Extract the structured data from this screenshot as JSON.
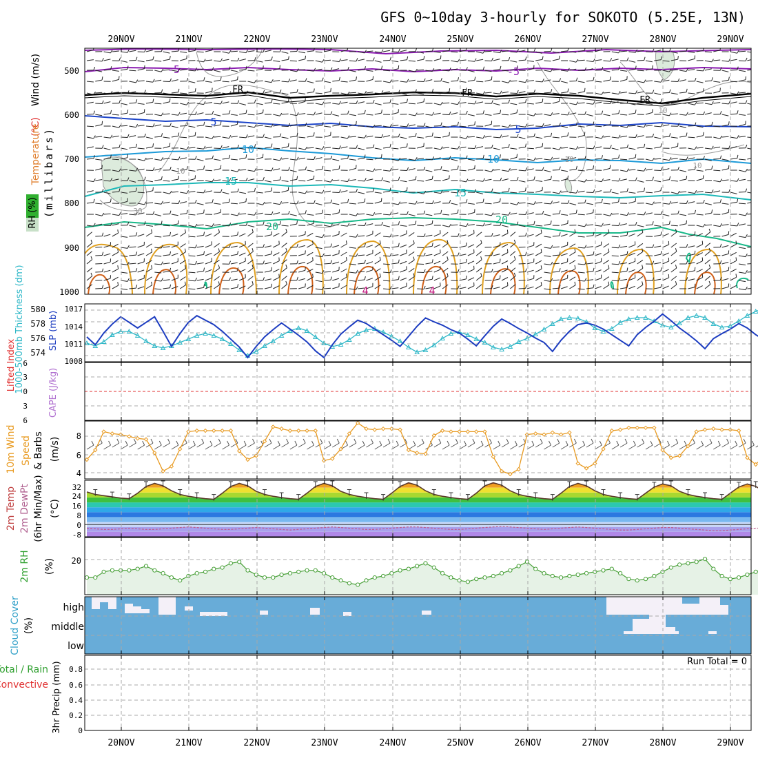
{
  "title": "GFS 0~10day 3-hourly for SOKOTO (5.25E, 13N)",
  "dates": [
    "20NOV",
    "21NOV",
    "22NOV",
    "23NOV",
    "24NOV",
    "25NOV",
    "26NOV",
    "27NOV",
    "28NOV",
    "29NOV"
  ],
  "colors": {
    "frame": "#000000",
    "grid": "#a8a8a8",
    "purple": "#8a1ab0",
    "freezing": "#000000",
    "blue": "#1c44c8",
    "lightblue": "#1c9ad8",
    "cyan": "#1cb8b8",
    "green": "#18b888",
    "orange": "#e0a020",
    "darkorange": "#d06018",
    "magenta": "#c0107a",
    "slp": "#1c3cc0",
    "thickness": "#30b8c8",
    "li_zero": "#e03030",
    "wind10": "#e89a20",
    "rh_fill": "#e6f2e6",
    "rh_line": "#48a038",
    "cloud": "#68acd8",
    "cloud_clear": "#f4f0f8"
  },
  "panels": {
    "upper_air": {
      "ylabel": "(millibars)",
      "legend": {
        "wind": "Wind (m/s)",
        "temp_unit": "(°C)",
        "temperature": "Temperature",
        "rh": "RH (%)"
      },
      "ticks": [
        "500",
        "600",
        "700",
        "800",
        "900",
        "1000"
      ],
      "iso_labels": {
        "m5": "-5",
        "fr": "FR",
        "p5": "5",
        "p10": "10",
        "p15": "15",
        "p20": "20",
        "rh30": "30",
        "rh10": "10",
        "four": "4"
      }
    },
    "slp_thickness": {
      "label_thickness": "1000-500mb Thickness (dm)",
      "label_slp": "SLP (mb)",
      "left_ticks": [
        "580",
        "578",
        "576",
        "574"
      ],
      "right_ticks": [
        "1017",
        "1014",
        "1011",
        "1008"
      ]
    },
    "li_cape": {
      "label_li": "Lifted Index",
      "label_cape": "CAPE (J/kg)",
      "ticks": [
        "6",
        "3",
        "0",
        "3",
        "6"
      ]
    },
    "wind10": {
      "label_a": "10m Wind",
      "label_b": "Speed",
      "label_c": "& Barbs",
      "unit": "(m/s)",
      "ticks": [
        "8",
        "6",
        "4"
      ]
    },
    "temp2m": {
      "label_a": "2m Temp",
      "label_b": "2m DewPt",
      "label_c": "(6hr Min/Max)",
      "unit": "(°C)",
      "ticks": [
        "32",
        "24",
        "16",
        "8",
        "0",
        "-8"
      ]
    },
    "rh2m": {
      "label": "2m RH",
      "unit": "(%)",
      "ticks": [
        "20"
      ]
    },
    "cloud": {
      "label": "Cloud Cover",
      "unit": "(%)",
      "levels": [
        "high",
        "middle",
        "low"
      ]
    },
    "precip": {
      "label_total": "Total / Rain",
      "label_conv": "Convective",
      "ylabel": "3hr Precip (mm)",
      "ticks": [
        "0.8",
        "0.6",
        "0.4",
        "0.2",
        "0"
      ],
      "run_total": "Run Total = 0"
    }
  },
  "chart_data": [
    {
      "type": "line",
      "title": "SLP (mb) / 1000-500mb Thickness (dm)",
      "x_start": "19NOV 15Z",
      "x_step_hours": 3,
      "series": [
        {
          "name": "SLP (mb)",
          "values": [
            1012.2,
            1010.8,
            1012.9,
            1014.5,
            1015.8,
            1014.8,
            1013.8,
            1014.8,
            1015.8,
            1013.2,
            1010.5,
            1012.8,
            1014.8,
            1016.0,
            1015.2,
            1014.4,
            1013.2,
            1011.8,
            1010.4,
            1008.5,
            1010.5,
            1012.2,
            1013.5,
            1014.7,
            1013.6,
            1012.5,
            1011.3,
            1009.7,
            1008.5,
            1010.8,
            1012.7,
            1014.0,
            1015.2,
            1014.6,
            1013.6,
            1012.6,
            1011.6,
            1010.5,
            1012.3,
            1014.1,
            1015.6,
            1014.9,
            1014.3,
            1013.5,
            1012.9,
            1011.8,
            1010.6,
            1012.4,
            1014.1,
            1015.4,
            1014.6,
            1013.7,
            1012.9,
            1012.0,
            1011.2,
            1009.6,
            1011.6,
            1013.2,
            1014.4,
            1014.7,
            1014.3,
            1013.6,
            1012.6,
            1011.6,
            1010.6,
            1012.6,
            1013.9,
            1015.0,
            1016.3,
            1015.1,
            1013.8,
            1012.7,
            1011.5,
            1010.1,
            1011.9,
            1012.8,
            1013.6,
            1014.6,
            1013.8,
            1012.6,
            1011.7,
            1010.9,
            1010.4,
            1011.8,
            1013.4,
            1015.1,
            1016.0,
            1015.0,
            1013.8,
            1012.8,
            1012.1,
            1011.6,
            1012.9,
            1014.3,
            1015.6,
            1015.2,
            1015.1,
            1016.8
          ]
        },
        {
          "name": "1000-500mb Thickness (dm)",
          "values": [
            578.5,
            578.9,
            578.3,
            577.3,
            576.8,
            576.8,
            577.4,
            578.2,
            578.9,
            579.2,
            578.9,
            578.4,
            577.9,
            577.4,
            577.1,
            577.4,
            577.9,
            578.6,
            579.5,
            580.3,
            579.7,
            578.9,
            578.2,
            577.4,
            576.7,
            576.3,
            576.7,
            577.6,
            578.5,
            579.0,
            578.7,
            578.0,
            577.1,
            576.6,
            576.4,
            576.9,
            577.5,
            578.2,
            579.1,
            579.8,
            579.5,
            578.8,
            577.8,
            577.1,
            576.9,
            577.3,
            577.9,
            578.4,
            579.1,
            579.4,
            579.0,
            578.3,
            577.8,
            577.2,
            576.5,
            575.7,
            575.0,
            574.8,
            574.9,
            575.4,
            576.3,
            576.8,
            576.4,
            575.5,
            575.0,
            574.8,
            574.8,
            575.3,
            575.9,
            576.2,
            575.6,
            574.8,
            574.5,
            574.8,
            575.7,
            576.2,
            576.0,
            575.3,
            574.5,
            573.9,
            573.4,
            573.9,
            574.8,
            575.8,
            576.3,
            575.8,
            575.1,
            574.3,
            574.1,
            574.8,
            575.7,
            575.9,
            575.6,
            575.0,
            574.4,
            574.1,
            573.7,
            573.2
          ]
        }
      ],
      "ylim_left": [
        573,
        581
      ],
      "ylim_right": [
        1008,
        1018
      ]
    },
    {
      "type": "line",
      "title": "10m Wind Speed (m/s)",
      "x_start": "19NOV 15Z",
      "x_step_hours": 3,
      "series": [
        {
          "name": "10m Wind Speed",
          "values": [
            7.5,
            6.5,
            4.6,
            4.8,
            4.9,
            5.1,
            5.3,
            5.4,
            6.8,
            8.7,
            8.2,
            6.4,
            4.6,
            4.5,
            4.5,
            4.5,
            4.5,
            4.5,
            6.6,
            7.5,
            7.1,
            5.6,
            4.1,
            4.3,
            4.5,
            4.5,
            4.5,
            4.5,
            7.6,
            7.4,
            6.4,
            4.8,
            3.7,
            4.3,
            4.4,
            4.3,
            4.3,
            4.4,
            6.5,
            6.8,
            6.9,
            5.0,
            4.5,
            4.6,
            4.6,
            4.6,
            4.6,
            4.6,
            7.2,
            8.7,
            9.0,
            8.5,
            4.9,
            4.8,
            4.9,
            4.7,
            4.9,
            4.7,
            7.9,
            8.4,
            7.9,
            6.4,
            4.5,
            4.4,
            4.2,
            4.2,
            4.2,
            4.2,
            6.5,
            7.3,
            7.1,
            6.1,
            4.6,
            4.4,
            4.3,
            4.4,
            4.4,
            4.5,
            7.3,
            8.0,
            7.1,
            6.4,
            4.3,
            4.4,
            4.8,
            4.6,
            4.5,
            4.3,
            6.6,
            8.4,
            7.8,
            6.5,
            5.2,
            5.1,
            5.3,
            5.4,
            5.5,
            5.3
          ]
        }
      ],
      "ylim": [
        3.5,
        9.5
      ]
    },
    {
      "type": "area",
      "title": "2m Temp / 2m DewPt (6hr Min/Max) (°C)",
      "x_start": "19NOV 15Z",
      "x_step_hours": 3,
      "series": [
        {
          "name": "2m Temp",
          "values": [
            26.5,
            24.5,
            23.5,
            22.5,
            21.5,
            21.0,
            25.5,
            31.0,
            33.5,
            31.5,
            27.5,
            24.5,
            23.0,
            22.0,
            21.0,
            20.5,
            25.5,
            31.0,
            33.5,
            31.5,
            27.0,
            24.5,
            23.0,
            22.0,
            21.0,
            20.5,
            25.5,
            31.0,
            33.5,
            31.5,
            27.0,
            24.5,
            23.0,
            22.0,
            21.0,
            20.5,
            25.5,
            31.0,
            34.0,
            32.0,
            27.5,
            24.5,
            23.0,
            22.0,
            21.0,
            20.5,
            25.5,
            31.5,
            34.0,
            32.0,
            27.5,
            24.5,
            23.0,
            22.0,
            21.0,
            20.5,
            25.5,
            31.0,
            33.5,
            31.5,
            27.5,
            24.5,
            23.0,
            22.0,
            21.0,
            20.5,
            25.5,
            30.5,
            33.0,
            31.5,
            27.0,
            24.5,
            23.0,
            22.0,
            21.0,
            20.5,
            25.5,
            30.5,
            33.0,
            31.0,
            27.0,
            24.0,
            22.5,
            21.5,
            20.5,
            20.0,
            25.0,
            30.0,
            31.5,
            30.5,
            26.5,
            23.5,
            22.0,
            21.0,
            20.0,
            19.0,
            18.0,
            17.5
          ]
        },
        {
          "name": "2m DewPt",
          "values": [
            -3,
            -3.5,
            -4,
            -4,
            -3.5,
            -3,
            -3.5,
            -4,
            -4,
            -3.5,
            -3,
            -2.5,
            -2,
            -2.5,
            -3,
            -3.5,
            -4,
            -4,
            -3.5,
            -3,
            -2.5,
            -3,
            -3.5,
            -4,
            -4.5,
            -4,
            -3.5,
            -3,
            -2.5,
            -2,
            -2.5,
            -3,
            -3.5,
            -4,
            -4,
            -3.5,
            -3,
            -2.5,
            -2,
            -2,
            -2.5,
            -3,
            -3.5,
            -4,
            -4,
            -3.5,
            -3,
            -2.5,
            -2,
            -1.5,
            -2,
            -2.5,
            -3,
            -3.5,
            -4,
            -3.5,
            -3,
            -2.5,
            -2,
            -2.5,
            -3,
            -3.5,
            -4,
            -4.5,
            -4.5,
            -4,
            -3.5,
            -3,
            -2.5,
            -2.5,
            -3,
            -3.5,
            -4,
            -4.5,
            -5,
            -5,
            -4.5,
            -4,
            -3.5,
            -3,
            -3,
            -3.5,
            -4,
            -4.5,
            -5,
            -5,
            -4.5,
            -4,
            -3.5,
            -3,
            -3,
            -3.5,
            -4,
            -4.5,
            -5,
            -5,
            -4.5,
            -4
          ]
        }
      ],
      "ylim": [
        -10,
        36
      ]
    },
    {
      "type": "area",
      "title": "2m RH (%)",
      "x_start": "19NOV 15Z",
      "x_step_hours": 3,
      "series": [
        {
          "name": "2m RH",
          "values": [
            12,
            12,
            16,
            17,
            17,
            17,
            18,
            20,
            17,
            15,
            12,
            10,
            13,
            15,
            16,
            18,
            19,
            22,
            23,
            17,
            14,
            12,
            12,
            14,
            15,
            16,
            17,
            17,
            15,
            12,
            10,
            8,
            7,
            10,
            12,
            13,
            15,
            17,
            18,
            20,
            22,
            19,
            15,
            12,
            10,
            9,
            11,
            12,
            13,
            15,
            17,
            20,
            23,
            18,
            15,
            13,
            12,
            13,
            14,
            15,
            16,
            17,
            18,
            15,
            11,
            10,
            11,
            13,
            16,
            19,
            21,
            22,
            23,
            25,
            18,
            13,
            11,
            12,
            14,
            16,
            18,
            20,
            22,
            25,
            28,
            21,
            15,
            12,
            13,
            15,
            15,
            15,
            17,
            19,
            15,
            12,
            11,
            12,
            14,
            17,
            19,
            21,
            24,
            26
          ]
        }
      ],
      "ylim": [
        0,
        40
      ]
    },
    {
      "type": "heatmap",
      "title": "Cloud Cover (%)",
      "layers": [
        "high",
        "middle",
        "low"
      ],
      "note": "Mostly 0% (blue) with high cloud on 20NOV and 27NOV-29NOV, middle cloud near 28NOV"
    },
    {
      "type": "bar",
      "title": "3hr Precip (mm)",
      "values": [],
      "ylim": [
        0,
        0.95
      ]
    }
  ]
}
